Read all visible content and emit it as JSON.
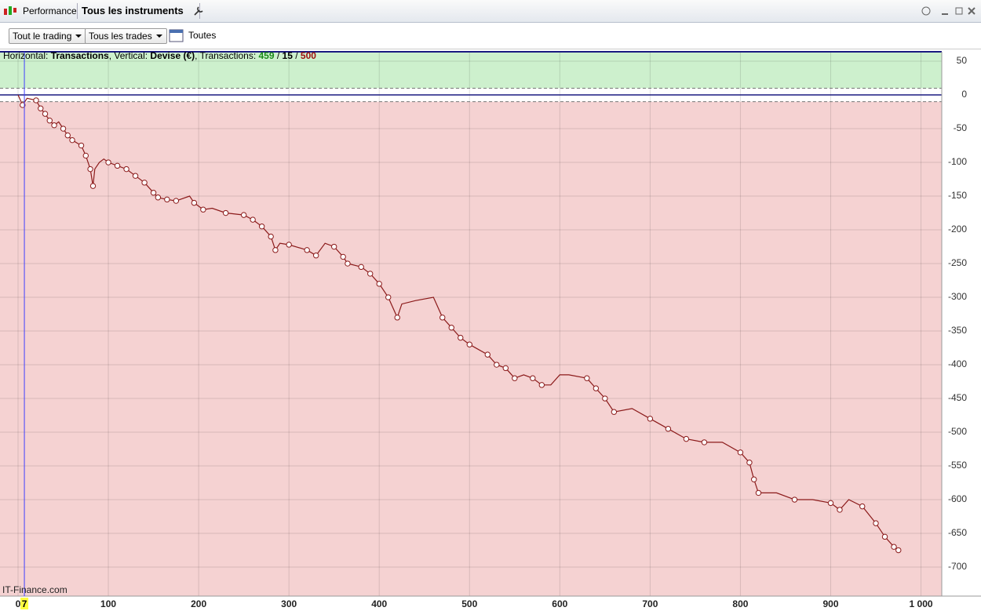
{
  "toolbar": {
    "tab": "Performance",
    "instrument": "Tous les instruments",
    "filter_trading": "Tout le trading",
    "filter_trades": "Tous les trades",
    "period": "Toutes"
  },
  "footer": "IT-Finance.com",
  "chart_data": {
    "type": "line",
    "info": [
      {
        "text": "Horizontal: ",
        "bold": false,
        "color": "#000000"
      },
      {
        "text": "Transactions",
        "bold": true,
        "color": "#000000"
      },
      {
        "text": ", Vertical: ",
        "bold": false,
        "color": "#000000"
      },
      {
        "text": "Devise (€)",
        "bold": true,
        "color": "#000000"
      },
      {
        "text": ", Transactions: ",
        "bold": false,
        "color": "#000000"
      },
      {
        "text": "459",
        "bold": true,
        "color": "#1a8a1a"
      },
      {
        "text": " / ",
        "bold": false,
        "color": "#000000"
      },
      {
        "text": "15",
        "bold": true,
        "color": "#000000"
      },
      {
        "text": " / ",
        "bold": false,
        "color": "#000000"
      },
      {
        "text": "500",
        "bold": true,
        "color": "#a01010"
      }
    ],
    "x": [
      0,
      5,
      10,
      20,
      25,
      30,
      35,
      40,
      45,
      50,
      55,
      60,
      70,
      75,
      80,
      83,
      85,
      90,
      95,
      100,
      110,
      120,
      130,
      140,
      150,
      155,
      165,
      175,
      190,
      195,
      205,
      215,
      230,
      250,
      260,
      270,
      280,
      285,
      290,
      300,
      320,
      330,
      340,
      350,
      360,
      365,
      380,
      390,
      400,
      410,
      420,
      425,
      440,
      460,
      470,
      480,
      490,
      500,
      520,
      530,
      540,
      550,
      560,
      570,
      580,
      590,
      600,
      610,
      630,
      640,
      650,
      660,
      680,
      700,
      720,
      740,
      760,
      780,
      800,
      810,
      815,
      820,
      840,
      860,
      880,
      900,
      910,
      920,
      935,
      950,
      960,
      970,
      975
    ],
    "values": [
      0,
      -15,
      -5,
      -8,
      -20,
      -28,
      -38,
      -45,
      -40,
      -50,
      -60,
      -67,
      -75,
      -90,
      -110,
      -135,
      -110,
      -100,
      -95,
      -100,
      -105,
      -110,
      -120,
      -130,
      -145,
      -152,
      -155,
      -157,
      -150,
      -160,
      -170,
      -168,
      -175,
      -178,
      -185,
      -195,
      -210,
      -230,
      -220,
      -222,
      -230,
      -238,
      -220,
      -225,
      -240,
      -250,
      -255,
      -265,
      -280,
      -300,
      -330,
      -310,
      -305,
      -300,
      -330,
      -345,
      -360,
      -370,
      -385,
      -400,
      -405,
      -420,
      -415,
      -420,
      -430,
      -430,
      -415,
      -415,
      -420,
      -435,
      -450,
      -470,
      -465,
      -480,
      -495,
      -510,
      -515,
      -515,
      -530,
      -545,
      -570,
      -590,
      -590,
      -600,
      -600,
      -605,
      -615,
      -600,
      -610,
      -635,
      -655,
      -670,
      -675
    ],
    "color": "#8b1a1a",
    "marker_fill": "#ffffff",
    "xlim": [
      -20,
      1023
    ],
    "ylim": [
      -743,
      64
    ],
    "xticks": [
      0,
      100,
      200,
      300,
      400,
      {
        "value": 500,
        "label": "500"
      },
      600,
      700,
      800,
      900,
      {
        "value": 1000,
        "label": "1 000"
      }
    ],
    "yticks": [
      50,
      0,
      -50,
      -100,
      -150,
      -200,
      -250,
      -300,
      -350,
      -400,
      -450,
      -500,
      -550,
      -600,
      -650,
      -700
    ],
    "grid": true,
    "zero_line_color": "#1a1a80",
    "profit_zone": {
      "from": 10,
      "color": "#cdf0cd"
    },
    "loss_zone": {
      "to": -10,
      "color": "#f5d2d2"
    },
    "threshold_lines": [
      10,
      -10
    ],
    "cursor": {
      "value": 7,
      "label": "7",
      "color": "#4040ff"
    }
  }
}
